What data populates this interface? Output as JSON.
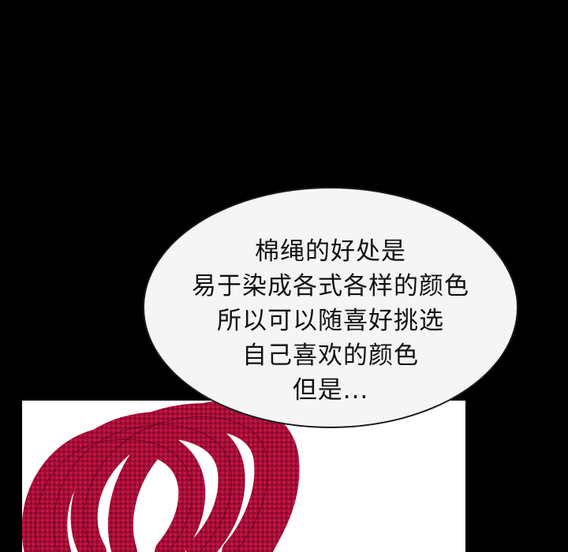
{
  "speech_bubble": {
    "lines": [
      "棉绳的好处是",
      "易于染成各式各样的颜色",
      "所以可以随喜好挑选",
      "自己喜欢的颜色",
      "但是..."
    ]
  },
  "colors": {
    "background": "#000000",
    "bubble_fill": "#f5f5f5",
    "rope_red": "#b0103a",
    "inset_background": "#ffffff"
  },
  "inset": {
    "subject": "coiled-red-cotton-rope"
  }
}
